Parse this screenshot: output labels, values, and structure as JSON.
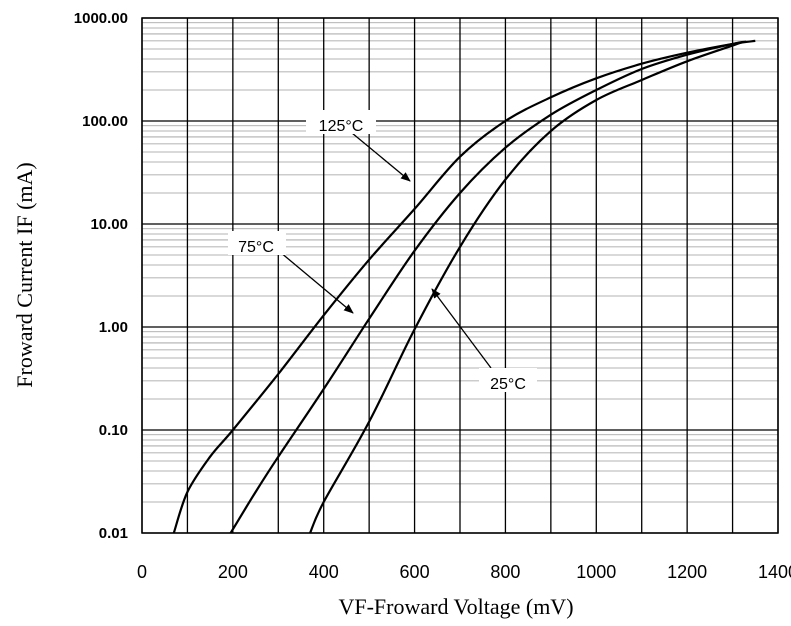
{
  "chart_data": {
    "type": "line",
    "xlabel": "VF-Froward Voltage (mV)",
    "ylabel": "Froward Current IF (mA)",
    "xlim": [
      0,
      1400
    ],
    "ylim": [
      0.01,
      1000
    ],
    "y_scale": "log",
    "grid": true,
    "x_ticks": [
      "0",
      "200",
      "400",
      "600",
      "800",
      "1000",
      "1200",
      "1400"
    ],
    "y_ticks": [
      "0.01",
      "0.10",
      "1.00",
      "10.00",
      "100.00",
      "1000.00"
    ],
    "series": [
      {
        "name": "125°C",
        "x": [
          70,
          100,
          150,
          200,
          300,
          400,
          500,
          600,
          700,
          800,
          900,
          1000,
          1100,
          1200,
          1300,
          1350
        ],
        "y": [
          0.01,
          0.025,
          0.055,
          0.1,
          0.35,
          1.3,
          4.5,
          14,
          45,
          100,
          170,
          260,
          360,
          460,
          560,
          600
        ]
      },
      {
        "name": "75°C",
        "x": [
          195,
          250,
          300,
          400,
          500,
          600,
          700,
          800,
          900,
          1000,
          1100,
          1200,
          1300,
          1330
        ],
        "y": [
          0.01,
          0.025,
          0.055,
          0.25,
          1.2,
          5.5,
          20,
          55,
          115,
          200,
          320,
          440,
          560,
          590
        ]
      },
      {
        "name": "25°C",
        "x": [
          370,
          400,
          500,
          600,
          700,
          800,
          900,
          1000,
          1100,
          1200,
          1300,
          1320
        ],
        "y": [
          0.01,
          0.02,
          0.12,
          0.95,
          6,
          27,
          80,
          160,
          250,
          380,
          540,
          580
        ]
      }
    ],
    "annotations": [
      {
        "text": "125°C",
        "target_series": "125°C"
      },
      {
        "text": "75°C",
        "target_series": "75°C"
      },
      {
        "text": "25°C",
        "target_series": "25°C"
      }
    ]
  }
}
